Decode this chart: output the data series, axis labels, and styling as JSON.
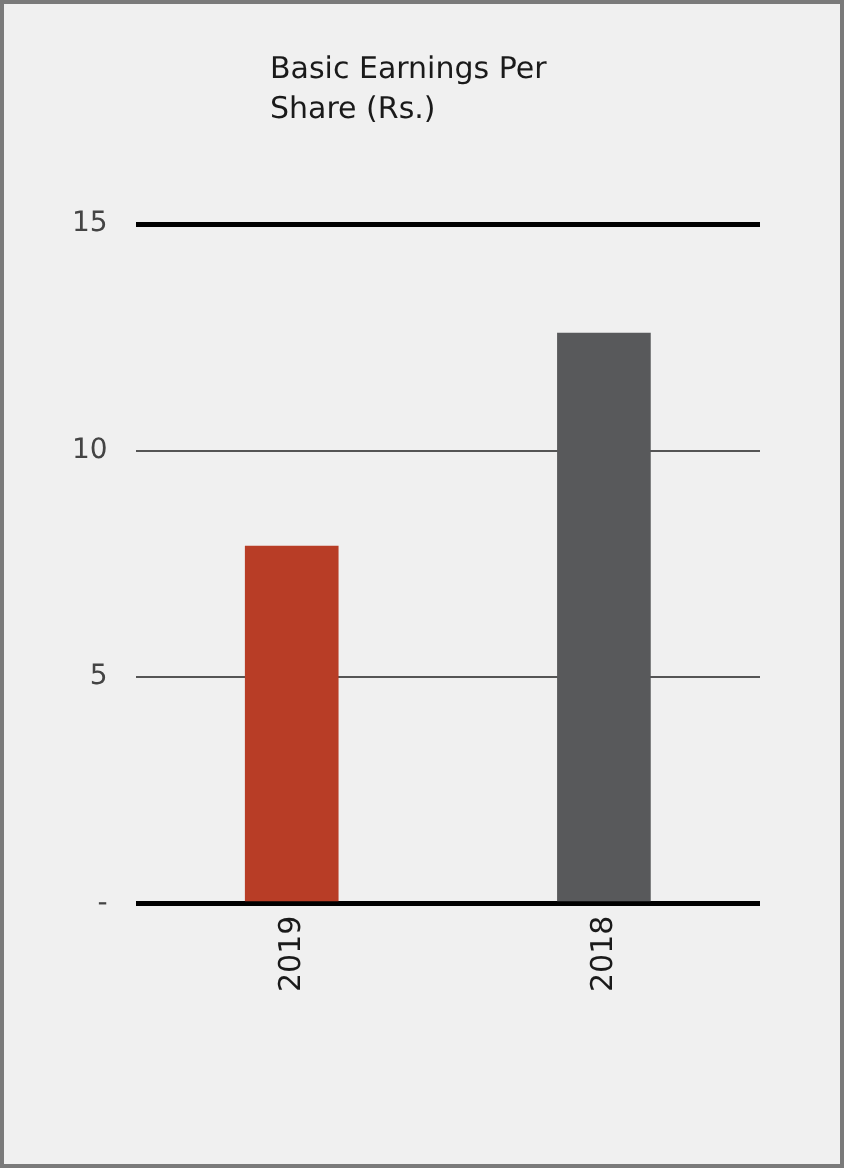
{
  "chart_data": {
    "type": "bar",
    "title": "Basic Earnings Per Share (Rs.)",
    "categories": [
      "2019",
      "2018"
    ],
    "values": [
      7.9,
      12.6
    ],
    "colors": [
      "#b83d26",
      "#58595b"
    ],
    "ylim": [
      0,
      15
    ],
    "yticks": [
      {
        "value": 0,
        "label": "-"
      },
      5,
      10,
      15
    ],
    "grid": "y",
    "legend": false
  }
}
